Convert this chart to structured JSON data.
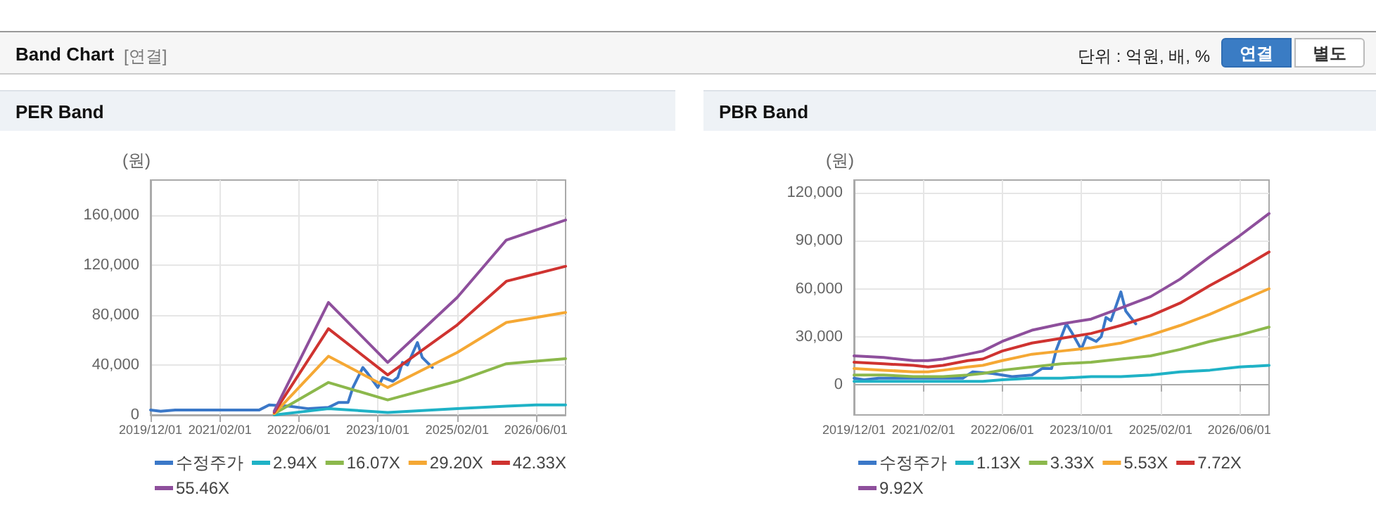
{
  "chart_data": [
    {
      "type": "other",
      "title": "Band Chart",
      "subtitle": "[연결]",
      "annotations": [
        "단위 : 억원, 배, %",
        "연결",
        "별도"
      ]
    },
    {
      "type": "line",
      "title": "PER Band",
      "ylabel": "(원)",
      "xlim": [
        "2019-12-01",
        "2026-12-01"
      ],
      "xticks": [
        {
          "value": "2019-12-01",
          "label": "2019/12/01"
        },
        {
          "value": "2021-02-01",
          "label": "2021/02/01"
        },
        {
          "value": "2022-06-01",
          "label": "2022/06/01"
        },
        {
          "value": "2023-10-01",
          "label": "2023/10/01"
        },
        {
          "value": "2025-02-01",
          "label": "2025/02/01"
        },
        {
          "value": "2026-06-01",
          "label": "2026/06/01"
        }
      ],
      "ylim": [
        0,
        188000
      ],
      "yticks": [
        0,
        {
          "value": 40000,
          "label": "40,000"
        },
        {
          "value": 80000,
          "label": "80,000"
        },
        {
          "value": 120000,
          "label": "120,000"
        },
        {
          "value": 160000,
          "label": "160,000"
        }
      ],
      "grid": true,
      "legend": "bottom",
      "marker": "none",
      "line_style": "solid",
      "series": [
        {
          "name": "수정주가",
          "color": "#3b78c8",
          "x": [
            "2019-12",
            "2020-02",
            "2020-05",
            "2020-08",
            "2020-11",
            "2021-10",
            "2021-12",
            "2022-04",
            "2022-08",
            "2022-12",
            "2023-02",
            "2023-04",
            "2023-05",
            "2023-07",
            "2023-08",
            "2023-10",
            "2023-11",
            "2024-01",
            "2024-02",
            "2024-03",
            "2024-04",
            "2024-06",
            "2024-07",
            "2024-08",
            "2024-09"
          ],
          "values": [
            4000,
            3000,
            4000,
            4000,
            4000,
            4000,
            8000,
            7000,
            5000,
            6000,
            10000,
            10000,
            22000,
            38000,
            33000,
            22000,
            30000,
            27000,
            30000,
            42000,
            40000,
            58000,
            46000,
            42000,
            38000
          ]
        },
        {
          "name": "2.94X",
          "color": "#1fb2c6",
          "x": [
            "2022-01",
            "2022-12",
            "2023-12",
            "2025-02",
            "2025-12",
            "2026-06",
            "2026-12"
          ],
          "values": [
            0,
            5000,
            2000,
            5000,
            7000,
            8000,
            8000
          ]
        },
        {
          "name": "16.07X",
          "color": "#8cb84c",
          "x": [
            "2022-01",
            "2022-12",
            "2023-12",
            "2025-02",
            "2025-12",
            "2026-06",
            "2026-12"
          ],
          "values": [
            1000,
            26000,
            12000,
            27000,
            41000,
            43000,
            45000
          ]
        },
        {
          "name": "29.20X",
          "color": "#f5a834",
          "x": [
            "2022-01",
            "2022-12",
            "2023-12",
            "2025-02",
            "2025-12",
            "2026-06",
            "2026-12"
          ],
          "values": [
            1000,
            47000,
            22000,
            50000,
            74000,
            78000,
            82000
          ]
        },
        {
          "name": "42.33X",
          "color": "#cf3330",
          "x": [
            "2022-01",
            "2022-12",
            "2023-12",
            "2025-02",
            "2025-12",
            "2026-06",
            "2026-12"
          ],
          "values": [
            2000,
            69000,
            32000,
            72000,
            107000,
            113000,
            119000
          ]
        },
        {
          "name": "55.46X",
          "color": "#8e4f9c",
          "x": [
            "2022-01",
            "2022-12",
            "2023-12",
            "2025-02",
            "2025-12",
            "2026-06",
            "2026-12"
          ],
          "values": [
            3000,
            90000,
            42000,
            94000,
            140000,
            148000,
            156000
          ]
        }
      ]
    },
    {
      "type": "line",
      "title": "PBR Band",
      "ylabel": "(원)",
      "xlim": [
        "2019-12-01",
        "2026-12-01"
      ],
      "xticks": [
        {
          "value": "2019-12-01",
          "label": "2019/12/01"
        },
        {
          "value": "2021-02-01",
          "label": "2021/02/01"
        },
        {
          "value": "2022-06-01",
          "label": "2022/06/01"
        },
        {
          "value": "2023-10-01",
          "label": "2023/10/01"
        },
        {
          "value": "2025-02-01",
          "label": "2025/02/01"
        },
        {
          "value": "2026-06-01",
          "label": "2026/06/01"
        }
      ],
      "ylim": [
        -19000,
        128000
      ],
      "yticks": [
        0,
        {
          "value": 30000,
          "label": "30,000"
        },
        {
          "value": 60000,
          "label": "60,000"
        },
        {
          "value": 90000,
          "label": "90,000"
        },
        {
          "value": 120000,
          "label": "120,000"
        }
      ],
      "grid": true,
      "legend": "bottom",
      "marker": "none",
      "line_style": "solid",
      "series": [
        {
          "name": "수정주가",
          "color": "#3b78c8",
          "x": [
            "2019-12",
            "2020-02",
            "2020-05",
            "2020-08",
            "2020-11",
            "2021-10",
            "2021-12",
            "2022-04",
            "2022-08",
            "2022-12",
            "2023-02",
            "2023-04",
            "2023-05",
            "2023-07",
            "2023-08",
            "2023-10",
            "2023-11",
            "2024-01",
            "2024-02",
            "2024-03",
            "2024-04",
            "2024-06",
            "2024-07",
            "2024-08",
            "2024-09"
          ],
          "values": [
            4000,
            3000,
            4000,
            4000,
            4000,
            4000,
            8000,
            7000,
            5000,
            6000,
            10000,
            10000,
            22000,
            38000,
            33000,
            22000,
            30000,
            27000,
            30000,
            42000,
            40000,
            58000,
            46000,
            42000,
            38000
          ]
        },
        {
          "name": "1.13X",
          "color": "#1fb2c6",
          "x": [
            "2019-12",
            "2020-06",
            "2020-12",
            "2021-03",
            "2021-06",
            "2021-11",
            "2022-02",
            "2022-06",
            "2022-12",
            "2023-06",
            "2023-12",
            "2024-06",
            "2024-12",
            "2025-06",
            "2025-12",
            "2026-06",
            "2026-12"
          ],
          "values": [
            2000,
            2000,
            2000,
            2000,
            2000,
            2000,
            2000,
            3000,
            4000,
            4000,
            5000,
            5000,
            6000,
            8000,
            9000,
            11000,
            12000
          ]
        },
        {
          "name": "3.33X",
          "color": "#8cb84c",
          "x": [
            "2019-12",
            "2020-06",
            "2020-12",
            "2021-03",
            "2021-06",
            "2021-11",
            "2022-02",
            "2022-06",
            "2022-12",
            "2023-06",
            "2023-12",
            "2024-06",
            "2024-12",
            "2025-06",
            "2025-12",
            "2026-06",
            "2026-12"
          ],
          "values": [
            6000,
            6000,
            5000,
            5000,
            5000,
            6000,
            7000,
            9000,
            11000,
            13000,
            14000,
            16000,
            18000,
            22000,
            27000,
            31000,
            36000
          ]
        },
        {
          "name": "5.53X",
          "color": "#f5a834",
          "x": [
            "2019-12",
            "2020-06",
            "2020-12",
            "2021-03",
            "2021-06",
            "2021-11",
            "2022-02",
            "2022-06",
            "2022-12",
            "2023-06",
            "2023-12",
            "2024-06",
            "2024-12",
            "2025-06",
            "2025-12",
            "2026-06",
            "2026-12"
          ],
          "values": [
            10000,
            9000,
            8000,
            8000,
            9000,
            11000,
            12000,
            15000,
            19000,
            21000,
            23000,
            26000,
            31000,
            37000,
            44000,
            52000,
            60000
          ]
        },
        {
          "name": "7.72X",
          "color": "#cf3330",
          "x": [
            "2019-12",
            "2020-06",
            "2020-12",
            "2021-03",
            "2021-06",
            "2021-11",
            "2022-02",
            "2022-06",
            "2022-12",
            "2023-06",
            "2023-12",
            "2024-06",
            "2024-12",
            "2025-06",
            "2025-12",
            "2026-06",
            "2026-12"
          ],
          "values": [
            14000,
            13000,
            12000,
            11000,
            12000,
            15000,
            16000,
            21000,
            26000,
            29000,
            32000,
            37000,
            43000,
            51000,
            62000,
            72000,
            83000
          ]
        },
        {
          "name": "9.92X",
          "color": "#8e4f9c",
          "x": [
            "2019-12",
            "2020-06",
            "2020-12",
            "2021-03",
            "2021-06",
            "2021-11",
            "2022-02",
            "2022-06",
            "2022-12",
            "2023-06",
            "2023-12",
            "2024-06",
            "2024-12",
            "2025-06",
            "2025-12",
            "2026-06",
            "2026-12"
          ],
          "values": [
            18000,
            17000,
            15000,
            15000,
            16000,
            19000,
            21000,
            27000,
            34000,
            38000,
            41000,
            48000,
            55000,
            66000,
            80000,
            93000,
            107000
          ]
        }
      ]
    }
  ]
}
